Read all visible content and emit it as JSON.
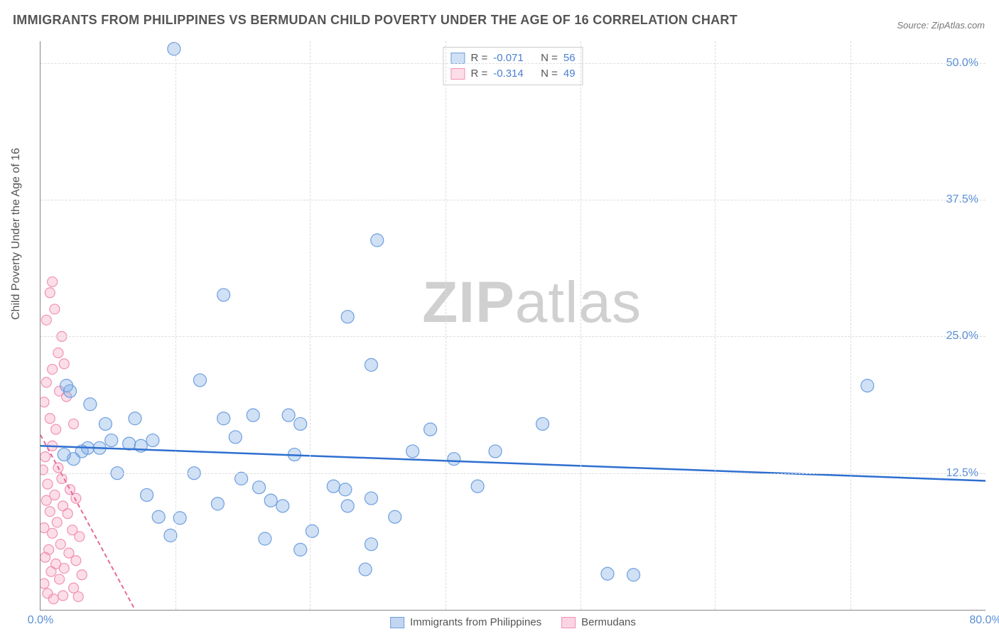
{
  "title": "IMMIGRANTS FROM PHILIPPINES VS BERMUDAN CHILD POVERTY UNDER THE AGE OF 16 CORRELATION CHART",
  "source": "Source: ZipAtlas.com",
  "watermark_bold": "ZIP",
  "watermark_rest": "atlas",
  "ylabel": "Child Poverty Under the Age of 16",
  "chart": {
    "type": "scatter",
    "background_color": "#ffffff",
    "grid_color": "#dcdcdc",
    "axis_color": "#888888",
    "text_color": "#555555",
    "value_color": "#4a7fd0",
    "xlim": [
      0,
      80
    ],
    "ylim": [
      0,
      52
    ],
    "x_ticks": [
      0,
      80
    ],
    "x_tick_labels": [
      "0.0%",
      "80.0%"
    ],
    "x_minor_ticks": [
      11.4,
      22.8,
      34.3,
      45.7,
      57.1,
      68.6
    ],
    "y_ticks": [
      12.5,
      25.0,
      37.5,
      50.0
    ],
    "y_tick_labels": [
      "12.5%",
      "25.0%",
      "37.5%",
      "50.0%"
    ],
    "marker_radius_main": 9,
    "marker_radius_small": 7,
    "series": [
      {
        "name": "Immigrants from Philippines",
        "color_fill": "rgba(120,165,225,0.35)",
        "color_stroke": "#6d9fe0",
        "R": "-0.071",
        "N": "56",
        "trend": {
          "x1": 0,
          "y1": 15.0,
          "x2": 80,
          "y2": 11.8,
          "color": "#2e6fd0",
          "width": 2.5,
          "dash": ""
        },
        "points": [
          [
            11.3,
            51.3
          ],
          [
            28.5,
            33.8
          ],
          [
            28.0,
            22.4
          ],
          [
            48.0,
            3.3
          ],
          [
            50.2,
            3.2
          ],
          [
            15.5,
            28.8
          ],
          [
            13.5,
            21.0
          ],
          [
            26.0,
            26.8
          ],
          [
            15.5,
            17.5
          ],
          [
            16.5,
            15.8
          ],
          [
            18.0,
            17.8
          ],
          [
            21.0,
            17.8
          ],
          [
            22.0,
            17.0
          ],
          [
            24.8,
            11.3
          ],
          [
            25.8,
            11.0
          ],
          [
            18.5,
            11.2
          ],
          [
            19.5,
            10.0
          ],
          [
            15.0,
            9.7
          ],
          [
            10.0,
            8.5
          ],
          [
            11.8,
            8.4
          ],
          [
            11.0,
            6.8
          ],
          [
            19.0,
            6.5
          ],
          [
            23.0,
            7.2
          ],
          [
            22.0,
            5.5
          ],
          [
            20.5,
            9.5
          ],
          [
            17.0,
            12.0
          ],
          [
            13.0,
            12.5
          ],
          [
            9.0,
            10.5
          ],
          [
            6.5,
            12.5
          ],
          [
            6.0,
            15.5
          ],
          [
            5.5,
            17.0
          ],
          [
            4.0,
            14.8
          ],
          [
            3.5,
            14.5
          ],
          [
            2.8,
            13.8
          ],
          [
            4.2,
            18.8
          ],
          [
            2.2,
            20.5
          ],
          [
            2.5,
            20.0
          ],
          [
            2.0,
            14.2
          ],
          [
            5.0,
            14.8
          ],
          [
            7.5,
            15.2
          ],
          [
            8.5,
            15.0
          ],
          [
            9.5,
            15.5
          ],
          [
            8.0,
            17.5
          ],
          [
            31.5,
            14.5
          ],
          [
            30.0,
            8.5
          ],
          [
            28.0,
            10.2
          ],
          [
            33.0,
            16.5
          ],
          [
            35.0,
            13.8
          ],
          [
            38.5,
            14.5
          ],
          [
            42.5,
            17.0
          ],
          [
            26.0,
            9.5
          ],
          [
            28.0,
            6.0
          ],
          [
            37.0,
            11.3
          ],
          [
            70.0,
            20.5
          ],
          [
            27.5,
            3.7
          ],
          [
            21.5,
            14.2
          ]
        ]
      },
      {
        "name": "Bermudans",
        "color_fill": "rgba(245,160,190,0.35)",
        "color_stroke": "#f092b5",
        "R": "-0.314",
        "N": "49",
        "trend": {
          "x1": 0,
          "y1": 16.0,
          "x2": 8.0,
          "y2": 0,
          "color": "#e86a98",
          "width": 2,
          "dash": "6 4"
        },
        "points": [
          [
            1.0,
            30.0
          ],
          [
            0.8,
            29.0
          ],
          [
            1.2,
            27.5
          ],
          [
            0.5,
            26.5
          ],
          [
            1.8,
            25.0
          ],
          [
            1.5,
            23.5
          ],
          [
            1.0,
            22.0
          ],
          [
            2.0,
            22.5
          ],
          [
            0.5,
            20.8
          ],
          [
            1.6,
            20.0
          ],
          [
            0.3,
            19.0
          ],
          [
            0.8,
            17.5
          ],
          [
            1.3,
            16.5
          ],
          [
            1.0,
            15.0
          ],
          [
            0.4,
            14.0
          ],
          [
            2.2,
            19.5
          ],
          [
            2.8,
            17.0
          ],
          [
            1.5,
            13.0
          ],
          [
            0.2,
            12.8
          ],
          [
            1.8,
            12.0
          ],
          [
            0.6,
            11.5
          ],
          [
            2.5,
            11.0
          ],
          [
            1.2,
            10.5
          ],
          [
            0.5,
            10.0
          ],
          [
            3.0,
            10.2
          ],
          [
            1.9,
            9.5
          ],
          [
            0.8,
            9.0
          ],
          [
            2.3,
            8.8
          ],
          [
            1.4,
            8.0
          ],
          [
            0.3,
            7.5
          ],
          [
            2.7,
            7.3
          ],
          [
            1.0,
            7.0
          ],
          [
            3.3,
            6.7
          ],
          [
            1.7,
            6.0
          ],
          [
            0.7,
            5.5
          ],
          [
            2.4,
            5.2
          ],
          [
            0.4,
            4.8
          ],
          [
            3.0,
            4.5
          ],
          [
            1.3,
            4.2
          ],
          [
            2.0,
            3.8
          ],
          [
            0.9,
            3.5
          ],
          [
            3.5,
            3.2
          ],
          [
            1.6,
            2.8
          ],
          [
            0.3,
            2.4
          ],
          [
            2.8,
            2.0
          ],
          [
            0.6,
            1.5
          ],
          [
            1.9,
            1.3
          ],
          [
            3.2,
            1.2
          ],
          [
            1.1,
            1.0
          ]
        ]
      }
    ]
  },
  "legend_top_prefix_R": "R = ",
  "legend_top_prefix_N": "N = ",
  "legend_bottom": [
    {
      "label": "Immigrants from Philippines",
      "fill": "rgba(120,165,225,0.45)",
      "stroke": "#6d9fe0"
    },
    {
      "label": "Bermudans",
      "fill": "rgba(245,160,190,0.45)",
      "stroke": "#f092b5"
    }
  ]
}
